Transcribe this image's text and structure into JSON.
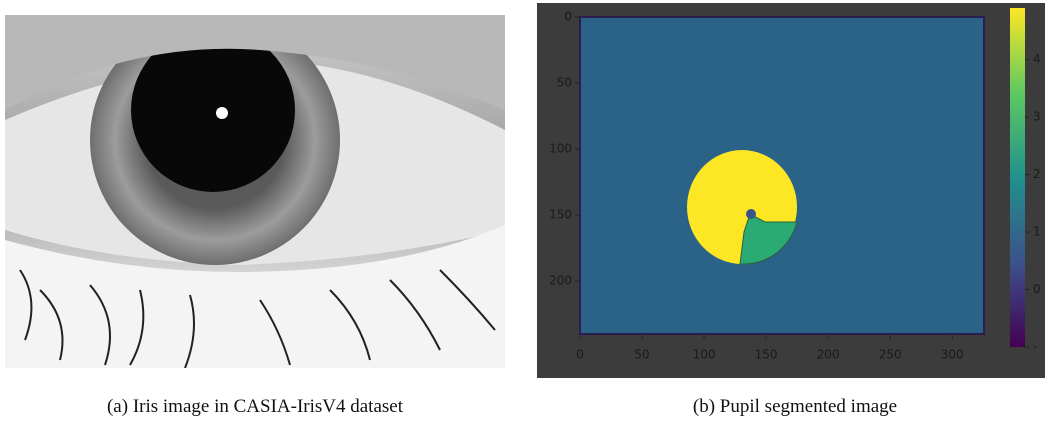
{
  "panels": [
    {
      "caption": "(a) Iris image in CASIA-IrisV4 dataset"
    },
    {
      "caption": "(b) Pupil segmented image",
      "xlim": [
        0,
        320
      ],
      "ylim": [
        0,
        240
      ],
      "xticks": [
        0,
        50,
        100,
        150,
        200,
        250,
        300
      ],
      "yticks": [
        0,
        50,
        100,
        150,
        200
      ],
      "colorbar": {
        "lim": [
          -1,
          4.9
        ],
        "ticks": [
          {
            "value": -1,
            "label": "-"
          },
          0,
          1,
          2,
          3,
          4
        ]
      }
    }
  ]
}
